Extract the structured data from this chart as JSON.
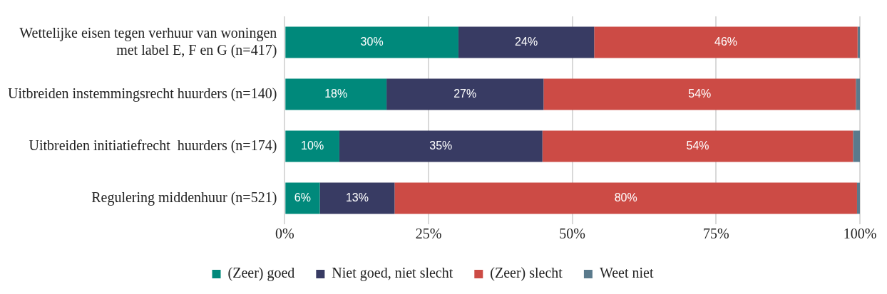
{
  "chart_data": {
    "type": "bar",
    "orientation": "horizontal",
    "stacked": true,
    "categories": [
      "Wettelijke eisen tegen verhuur van woningen\nmet label E, F en G (n=417)",
      "Uitbreiden instemmingsrecht huurders (n=140)",
      "Uitbreiden initiatiefrecht  huurders (n=174)",
      "Regulering middenhuur (n=521)"
    ],
    "series": [
      {
        "name": "(Zeer) goed",
        "color": "#00897b",
        "values": [
          30.2,
          17.7,
          9.5,
          6.1
        ],
        "value_labels": [
          "30%",
          "18%",
          "10%",
          "6%"
        ]
      },
      {
        "name": "Niet goed, niet slecht",
        "color": "#383b63",
        "values": [
          23.6,
          27.3,
          35.3,
          13.0
        ],
        "value_labels": [
          "24%",
          "27%",
          "35%",
          "13%"
        ]
      },
      {
        "name": "(Zeer) slecht",
        "color": "#cc4b45",
        "values": [
          45.8,
          54.3,
          54.0,
          80.4
        ],
        "value_labels": [
          "46%",
          "54%",
          "54%",
          "80%"
        ]
      },
      {
        "name": "Weet niet",
        "color": "#5a7a8c",
        "values": [
          0.4,
          0.7,
          1.2,
          0.5
        ],
        "value_labels": [
          null,
          null,
          null,
          null
        ]
      }
    ],
    "xlim": [
      0,
      100
    ],
    "xticks": [
      {
        "value": 0,
        "label": "0%"
      },
      {
        "value": 25,
        "label": "25%"
      },
      {
        "value": 50,
        "label": "50%"
      },
      {
        "value": 75,
        "label": "75%"
      },
      {
        "value": 100,
        "label": "100%"
      }
    ],
    "grid": "x",
    "legend": "bottom"
  }
}
